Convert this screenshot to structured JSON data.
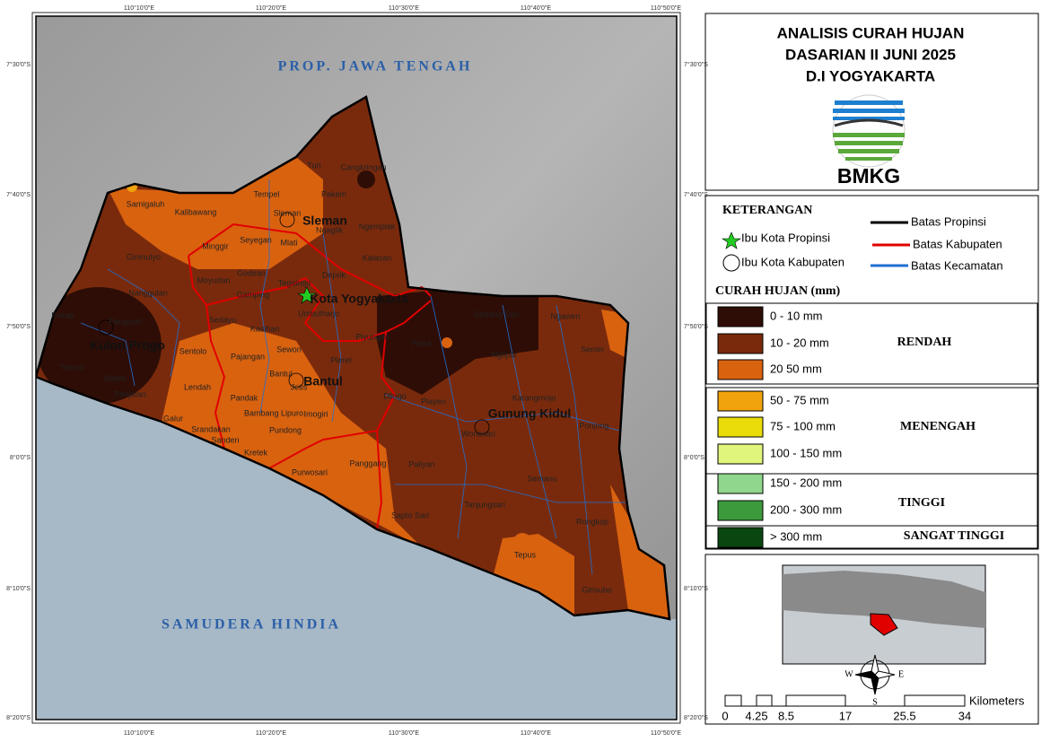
{
  "title": {
    "lines": [
      "ANALISIS CURAH HUJAN",
      "DASARIAN II JUNI 2025",
      "D.I YOGYAKARTA"
    ],
    "logo": "BMKG"
  },
  "coordinates": {
    "top": [
      "110°10'0\"E",
      "110°20'0\"E",
      "110°30'0\"E",
      "110°40'0\"E",
      "110°50'0\"E"
    ],
    "left": [
      "7°30'0\"S",
      "7°40'0\"S",
      "7°50'0\"S",
      "8°0'0\"S",
      "8°10'0\"S",
      "8°20'0\"S"
    ]
  },
  "map": {
    "province": "PROP. JAWA TENGAH",
    "sea": "SAMUDERA HINDIA",
    "regions": [
      "Sleman",
      "Kota Yogyakarta",
      "Kulon Progo",
      "Bantul",
      "Gunung Kidul"
    ],
    "places": [
      "Turi",
      "Cangkringan",
      "Tempel",
      "Pakem",
      "Samigaluh",
      "Kalibawang",
      "Sleman",
      "Ngaglik",
      "Ngemplak",
      "Minggir",
      "Seyegan",
      "Mlati",
      "Girimulyo",
      "Godean",
      "Depok",
      "Kalasan",
      "Moyudan",
      "Nanggulan",
      "Gamping",
      "Tegalrejo",
      "Kokap",
      "Pengasih",
      "Sedayu",
      "Umbulharjo",
      "Kasihan",
      "Gedang Sari",
      "Ngawen",
      "Sentolo",
      "Pajangan",
      "Piyungan",
      "Patuk",
      "Semin",
      "Sewon",
      "Temon",
      "Wates",
      "Pleret",
      "Nglipar",
      "Lendah",
      "Bantul",
      "Jetis",
      "Karangmojo",
      "Panjatan",
      "Pandak",
      "Dlingo",
      "Playen",
      "Galur",
      "Bambang Lipuro",
      "Imogiri",
      "Ponjong",
      "Srandakan",
      "Sanden",
      "Pundong",
      "Wonosari",
      "Kretek",
      "Purwosari",
      "Panggang",
      "Paliyan",
      "Semanu",
      "Sapto Sari",
      "Tanjungsari",
      "Rongkop",
      "Tepus",
      "Girisubo"
    ]
  },
  "legend": {
    "heading": "KETERANGAN",
    "items": [
      "Ibu Kota Propinsi",
      "Ibu Kota Kabupaten",
      "Batas Propinsi",
      "Batas Kabupaten",
      "Batas Kecamatan"
    ],
    "rain_heading": "CURAH HUJAN (mm)",
    "classes": [
      {
        "label": "0 - 10 mm",
        "color": "#2e0d06"
      },
      {
        "label": "10 - 20 mm",
        "color": "#7a2a0c"
      },
      {
        "label": "20  50 mm",
        "color": "#d9620f"
      },
      {
        "label": "50 - 75 mm",
        "color": "#f0a30c"
      },
      {
        "label": "75 - 100 mm",
        "color": "#e9dc0a"
      },
      {
        "label": "100 - 150 mm",
        "color": "#e0f57c"
      },
      {
        "label": "150 - 200 mm",
        "color": "#90d68c"
      },
      {
        "label": "200 - 300 mm",
        "color": "#3c9a3c"
      },
      {
        "label": "> 300 mm",
        "color": "#0a4710"
      }
    ],
    "groups": [
      "RENDAH",
      "MENENGAH",
      "TINGGI",
      "SANGAT TINGGI"
    ]
  },
  "scale": {
    "unit": "Kilometers",
    "labels": [
      "0",
      "4.25",
      "8.5",
      "17",
      "25.5",
      "34"
    ]
  },
  "compass": [
    "W",
    "E",
    "S"
  ]
}
